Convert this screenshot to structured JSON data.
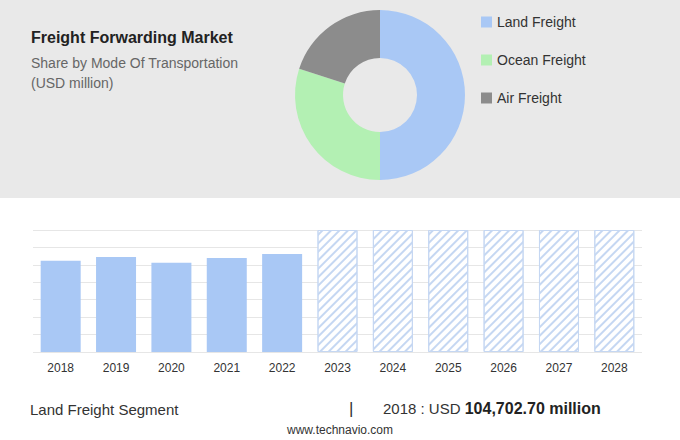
{
  "title": "Freight Forwarding Market",
  "subtitle": "Share by Mode Of Transportation\n(USD million)",
  "chart_data": [
    {
      "type": "pie",
      "categories": [
        "Land Freight",
        "Ocean Freight",
        "Air Freight"
      ],
      "values": [
        50,
        30,
        20
      ],
      "colors": [
        "#a9c8f5",
        "#b3f0b3",
        "#8c8c8c"
      ],
      "legend": "right"
    },
    {
      "type": "bar",
      "categories": [
        "2018",
        "2019",
        "2020",
        "2021",
        "2022",
        "2023",
        "2024",
        "2025",
        "2026",
        "2027",
        "2028"
      ],
      "series": [
        {
          "values": [
            104702.7,
            109100,
            102500,
            108000,
            112400,
            null,
            null,
            null,
            null,
            null,
            null
          ],
          "color": "#a9c8f5"
        },
        {
          "values": [
            null,
            null,
            null,
            null,
            null,
            140000,
            140000,
            140000,
            140000,
            140000,
            140000
          ],
          "color": "#c5d7f2"
        }
      ],
      "ylim": [
        0,
        140000
      ],
      "yticks": [
        0,
        20000,
        40000,
        60000,
        80000,
        100000,
        120000,
        140000
      ],
      "grid": true,
      "tick_labels": "x"
    }
  ],
  "footer": {
    "segment": "Land Freight Segment",
    "separator": "|",
    "year_label": "2018 : USD",
    "amount": "104,702.70 million",
    "website": "www.technavio.com"
  }
}
